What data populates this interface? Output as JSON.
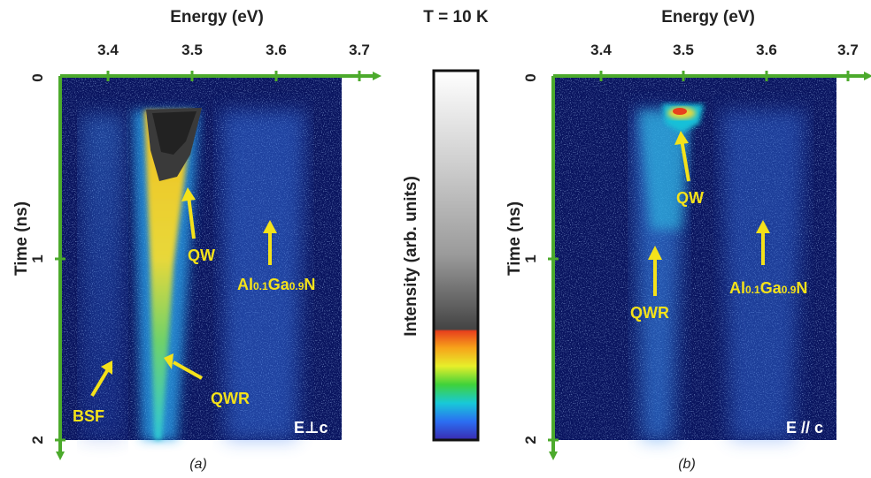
{
  "figure": {
    "temperature_label": "T = 10 K",
    "colorbar_label": "Intensity (arb. units)",
    "colors": {
      "axis_green": "#4caa2c",
      "annotation_yellow": "#f4e21a",
      "background_blue": "#0a1560"
    }
  },
  "panel_a": {
    "x_title": "Energy (eV)",
    "y_title": "Time (ns)",
    "x_ticks": [
      "3.4",
      "3.5",
      "3.6",
      "3.7"
    ],
    "y_ticks": [
      "0",
      "1",
      "2"
    ],
    "polarization": "E⊥c",
    "caption": "(a)",
    "annotations": {
      "qw": "QW",
      "qwr": "QWR",
      "bsf": "BSF",
      "algan_al": "Al",
      "algan_x": "0.1",
      "algan_ga": "Ga",
      "algan_y": "0.9",
      "algan_n": "N"
    }
  },
  "panel_b": {
    "x_title": "Energy (eV)",
    "y_title": "Time (ns)",
    "x_ticks": [
      "3.4",
      "3.5",
      "3.6",
      "3.7"
    ],
    "y_ticks": [
      "0",
      "1",
      "2"
    ],
    "polarization": "E // c",
    "caption": "(b)",
    "annotations": {
      "qw": "QW",
      "qwr": "QWR",
      "algan_al": "Al",
      "algan_x": "0.1",
      "algan_ga": "Ga",
      "algan_y": "0.9",
      "algan_n": "N"
    }
  }
}
